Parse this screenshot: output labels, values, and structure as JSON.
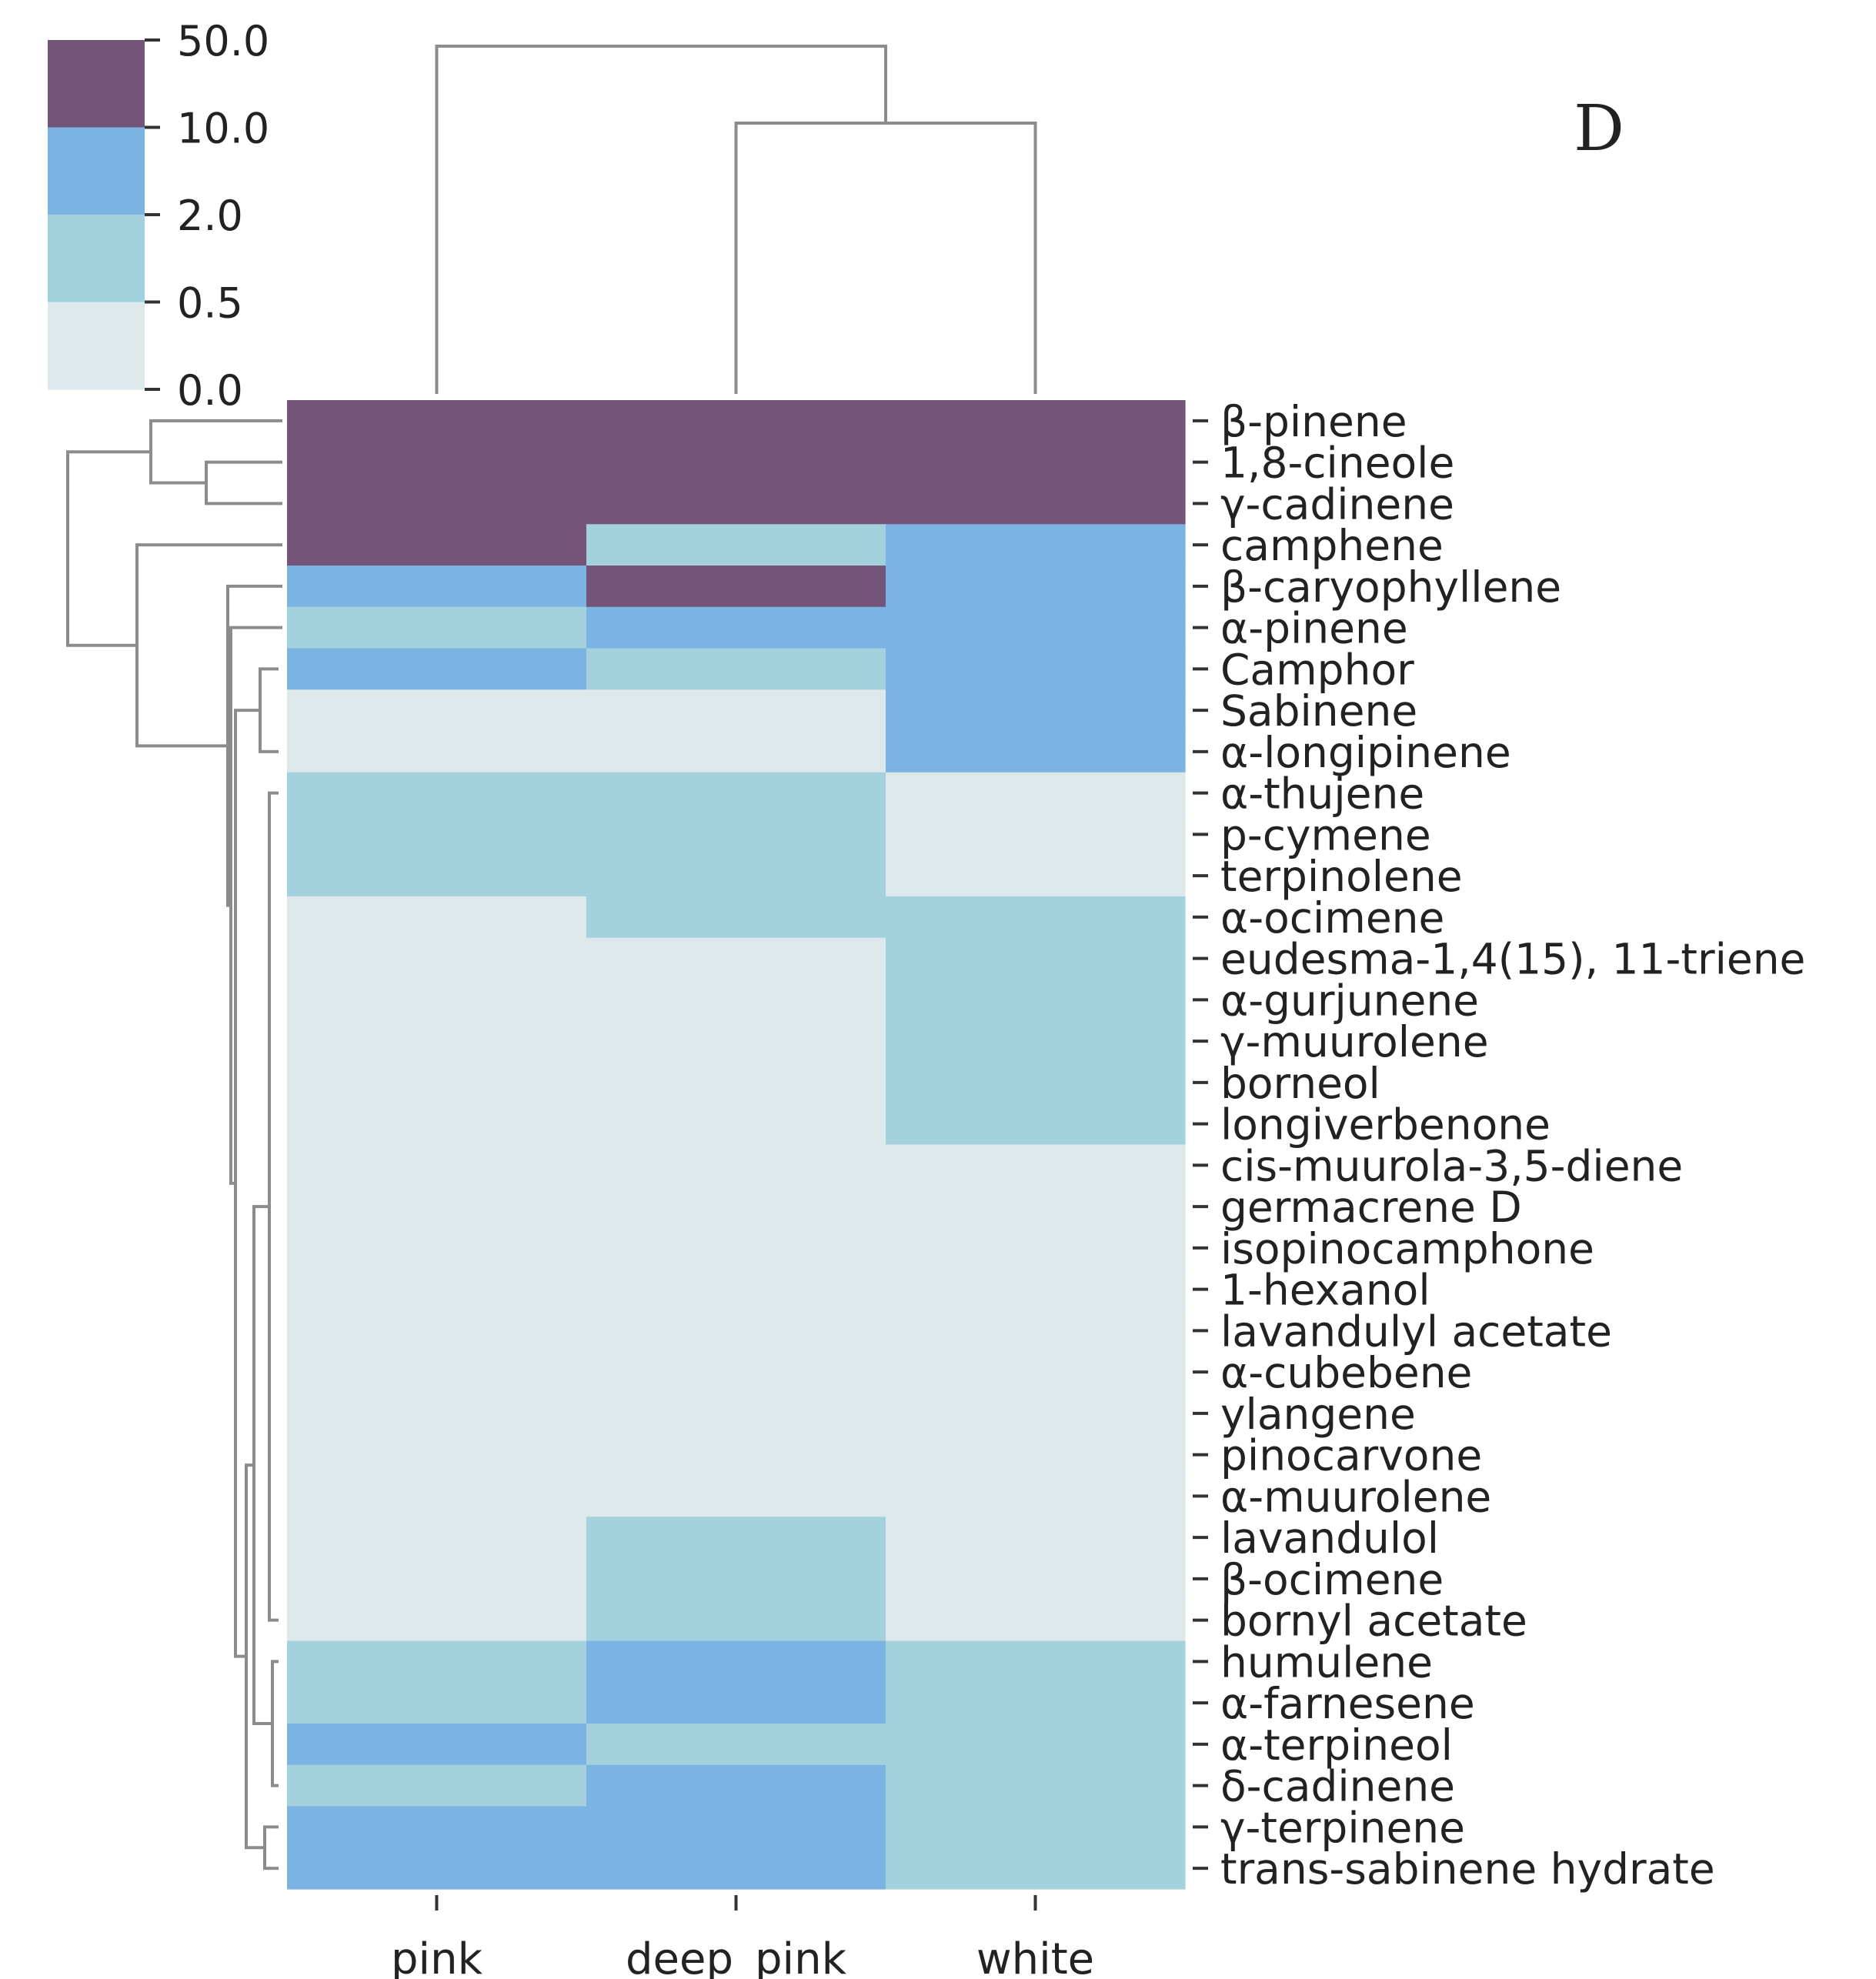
{
  "chart_data": {
    "type": "heatmap",
    "title": "",
    "panel_label": "D",
    "xlabel": "",
    "ylabel": "",
    "columns": [
      "pink",
      "deep_pink",
      "white"
    ],
    "rows": [
      "β-pinene",
      "1,8-cineole",
      "γ-cadinene",
      "camphene",
      "β-caryophyllene",
      "α-pinene",
      "Camphor",
      "Sabinene",
      "α-longipinene",
      "α-thujene",
      "p-cymene",
      "terpinolene",
      "α-ocimene",
      "eudesma-1,4(15), 11-triene",
      "α-gurjunene",
      "γ-muurolene",
      "borneol",
      "longiverbenone",
      "cis-muurola-3,5-diene",
      "germacrene D",
      "isopinocamphone",
      "1-hexanol",
      "lavandulyl acetate",
      "α-cubebene",
      "ylangene",
      "pinocarvone",
      "α-muurolene",
      "lavandulol",
      "β-ocimene",
      "bornyl acetate",
      "humulene",
      "α-farnesene",
      "α-terpineol",
      "δ-cadinene",
      "γ-terpinene",
      "trans-sabinene hydrate"
    ],
    "level_matrix": [
      [
        4,
        4,
        4
      ],
      [
        4,
        4,
        4
      ],
      [
        4,
        4,
        4
      ],
      [
        4,
        2,
        3
      ],
      [
        3,
        4,
        3
      ],
      [
        2,
        3,
        3
      ],
      [
        3,
        2,
        3
      ],
      [
        1,
        1,
        3
      ],
      [
        1,
        1,
        3
      ],
      [
        2,
        2,
        1
      ],
      [
        2,
        2,
        1
      ],
      [
        2,
        2,
        1
      ],
      [
        1,
        2,
        2
      ],
      [
        1,
        1,
        2
      ],
      [
        1,
        1,
        2
      ],
      [
        1,
        1,
        2
      ],
      [
        1,
        1,
        2
      ],
      [
        1,
        1,
        2
      ],
      [
        1,
        1,
        1
      ],
      [
        1,
        1,
        1
      ],
      [
        1,
        1,
        1
      ],
      [
        1,
        1,
        1
      ],
      [
        1,
        1,
        1
      ],
      [
        1,
        1,
        1
      ],
      [
        1,
        1,
        1
      ],
      [
        1,
        1,
        1
      ],
      [
        1,
        1,
        1
      ],
      [
        1,
        2,
        1
      ],
      [
        1,
        2,
        1
      ],
      [
        1,
        2,
        1
      ],
      [
        2,
        3,
        2
      ],
      [
        2,
        3,
        2
      ],
      [
        3,
        2,
        2
      ],
      [
        2,
        3,
        2
      ],
      [
        3,
        3,
        2
      ],
      [
        3,
        3,
        2
      ]
    ],
    "color_scale": {
      "ticks": [
        "50.0",
        "10.0",
        "2.0",
        "0.5",
        "0.0"
      ],
      "bins": [
        {
          "level": 1,
          "range": [
            0.0,
            0.5
          ],
          "color": "#dde8ea"
        },
        {
          "level": 2,
          "range": [
            0.5,
            2.0
          ],
          "color": "#a3d1dd"
        },
        {
          "level": 3,
          "range": [
            2.0,
            10.0
          ],
          "color": "#7bb3e2"
        },
        {
          "level": 4,
          "range": [
            10.0,
            50.0
          ],
          "color": "#755479"
        }
      ]
    },
    "column_dendrogram": [
      [
        "deep_pink",
        "white"
      ],
      [
        "pink",
        [
          "deep_pink",
          "white"
        ]
      ]
    ],
    "grid": false,
    "legend": "top-left colorbar"
  },
  "colors": {
    "axis": "#333333",
    "dendrogram": "#8c8c8c",
    "background": "#ffffff"
  }
}
